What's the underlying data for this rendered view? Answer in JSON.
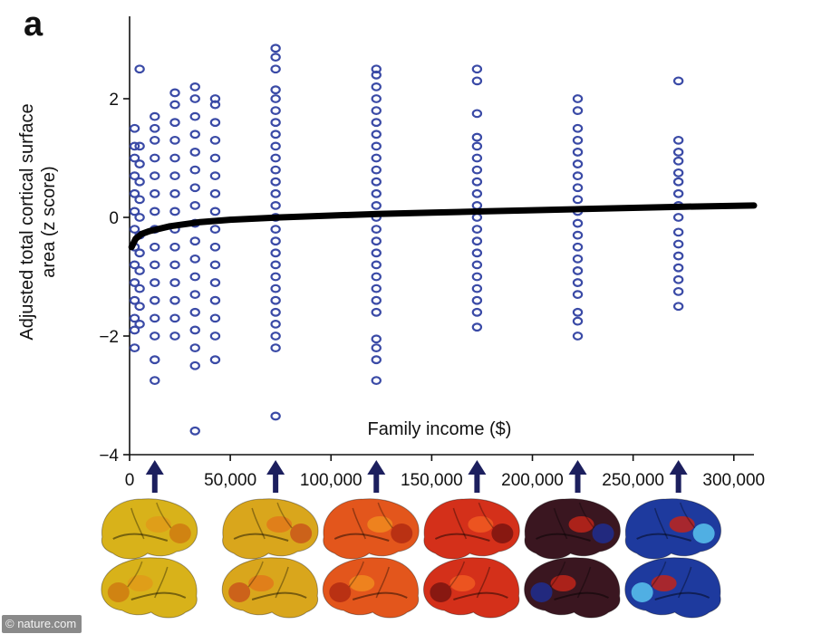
{
  "panel_label": "a",
  "watermark": "© nature.com",
  "colors": {
    "points": "#3a4aa6",
    "fit_line": "#000000",
    "arrows": "#1c1f5e",
    "axis": "#111111"
  },
  "chart_data": {
    "type": "scatter",
    "title": "",
    "xlabel": "Family income ($)",
    "ylabel": "Adjusted total cortical surface area (z score)",
    "xlim": [
      0,
      310000
    ],
    "ylim": [
      -4,
      3.4
    ],
    "x_ticks": [
      0,
      50000,
      100000,
      150000,
      200000,
      250000,
      300000
    ],
    "x_tick_labels": [
      "0",
      "50,000",
      "100,000",
      "150,000",
      "200,000",
      "250,000",
      "300,000"
    ],
    "y_ticks": [
      -4,
      -2,
      0,
      2
    ],
    "y_tick_labels": [
      "−4",
      "−2",
      "0",
      "2"
    ],
    "grid": false,
    "legend": "none",
    "fit_curve": {
      "x": [
        1000,
        3000,
        6000,
        10000,
        20000,
        35000,
        50000,
        75000,
        100000,
        125000,
        150000,
        175000,
        200000,
        225000,
        250000,
        275000,
        310000
      ],
      "y": [
        -0.5,
        -0.36,
        -0.28,
        -0.23,
        -0.15,
        -0.08,
        -0.04,
        0.0,
        0.03,
        0.06,
        0.08,
        0.1,
        0.12,
        0.14,
        0.16,
        0.18,
        0.2
      ]
    },
    "series": [
      {
        "x": 2500,
        "y": [
          -2.2,
          -1.9,
          -1.7,
          -1.4,
          -1.1,
          -0.8,
          -0.5,
          -0.2,
          0.1,
          0.4,
          0.7,
          1.0,
          1.2,
          1.5
        ]
      },
      {
        "x": 5000,
        "y": [
          -1.8,
          -1.5,
          -1.2,
          -0.9,
          -0.6,
          -0.3,
          0.0,
          0.3,
          0.6,
          0.9,
          1.2,
          2.5
        ]
      },
      {
        "x": 12500,
        "y": [
          -2.75,
          -2.4,
          -2.0,
          -1.7,
          -1.4,
          -1.1,
          -0.8,
          -0.5,
          -0.2,
          0.1,
          0.4,
          0.7,
          1.0,
          1.3,
          1.5,
          1.7
        ]
      },
      {
        "x": 22500,
        "y": [
          -2.0,
          -1.7,
          -1.4,
          -1.1,
          -0.8,
          -0.5,
          -0.2,
          0.1,
          0.4,
          0.7,
          1.0,
          1.3,
          1.6,
          1.9,
          2.1
        ]
      },
      {
        "x": 32500,
        "y": [
          -3.6,
          -2.5,
          -2.2,
          -1.9,
          -1.6,
          -1.3,
          -1.0,
          -0.7,
          -0.4,
          -0.1,
          0.2,
          0.5,
          0.8,
          1.1,
          1.4,
          1.7,
          2.0,
          2.2
        ]
      },
      {
        "x": 42500,
        "y": [
          -2.4,
          -2.0,
          -1.7,
          -1.4,
          -1.1,
          -0.8,
          -0.5,
          -0.2,
          0.1,
          0.4,
          0.7,
          1.0,
          1.3,
          1.6,
          1.9,
          2.0
        ]
      },
      {
        "x": 72500,
        "y": [
          -3.35,
          -2.2,
          -2.0,
          -1.8,
          -1.6,
          -1.4,
          -1.2,
          -1.0,
          -0.8,
          -0.6,
          -0.4,
          -0.2,
          0.0,
          0.2,
          0.4,
          0.6,
          0.8,
          1.0,
          1.2,
          1.4,
          1.6,
          1.8,
          2.0,
          2.15,
          2.5,
          2.7,
          2.85
        ]
      },
      {
        "x": 122500,
        "y": [
          -2.75,
          -2.4,
          -2.2,
          -2.05,
          -1.6,
          -1.4,
          -1.2,
          -1.0,
          -0.8,
          -0.6,
          -0.4,
          -0.2,
          0.0,
          0.2,
          0.4,
          0.6,
          0.8,
          1.0,
          1.2,
          1.4,
          1.6,
          1.8,
          2.0,
          2.2,
          2.4,
          2.5
        ]
      },
      {
        "x": 172500,
        "y": [
          -1.85,
          -1.6,
          -1.4,
          -1.2,
          -1.0,
          -0.8,
          -0.6,
          -0.4,
          -0.2,
          0.0,
          0.2,
          0.4,
          0.6,
          0.8,
          1.0,
          1.2,
          1.35,
          1.75,
          2.3,
          2.5
        ]
      },
      {
        "x": 222500,
        "y": [
          -2.0,
          -1.75,
          -1.6,
          -1.3,
          -1.1,
          -0.9,
          -0.7,
          -0.5,
          -0.3,
          -0.1,
          0.1,
          0.3,
          0.5,
          0.7,
          0.9,
          1.1,
          1.3,
          1.5,
          1.8,
          2.0
        ]
      },
      {
        "x": 272500,
        "y": [
          -1.5,
          -1.25,
          -1.05,
          -0.85,
          -0.65,
          -0.45,
          -0.25,
          0.0,
          0.2,
          0.4,
          0.6,
          0.75,
          0.95,
          1.1,
          1.3,
          2.3
        ]
      }
    ],
    "arrows_at_x": [
      12500,
      72500,
      122500,
      172500,
      222500,
      272500
    ],
    "brain_maps": [
      {
        "at_x": 12500,
        "fill": "#d8b21a",
        "hotspots": [
          "#e09a1a",
          "#cf7a12"
        ]
      },
      {
        "at_x": 72500,
        "fill": "#d9a61c",
        "hotspots": [
          "#e0781a",
          "#c9561a"
        ]
      },
      {
        "at_x": 122500,
        "fill": "#e3561c",
        "hotspots": [
          "#f08a1e",
          "#b22a12"
        ]
      },
      {
        "at_x": 172500,
        "fill": "#d4301a",
        "hotspots": [
          "#f05a22",
          "#7a1410"
        ]
      },
      {
        "at_x": 222500,
        "fill": "#3a1620",
        "hotspots": [
          "#c0241a",
          "#1e2d8f"
        ]
      },
      {
        "at_x": 272500,
        "fill": "#1e3a9e",
        "hotspots": [
          "#c0241a",
          "#59c4ee"
        ]
      }
    ]
  }
}
